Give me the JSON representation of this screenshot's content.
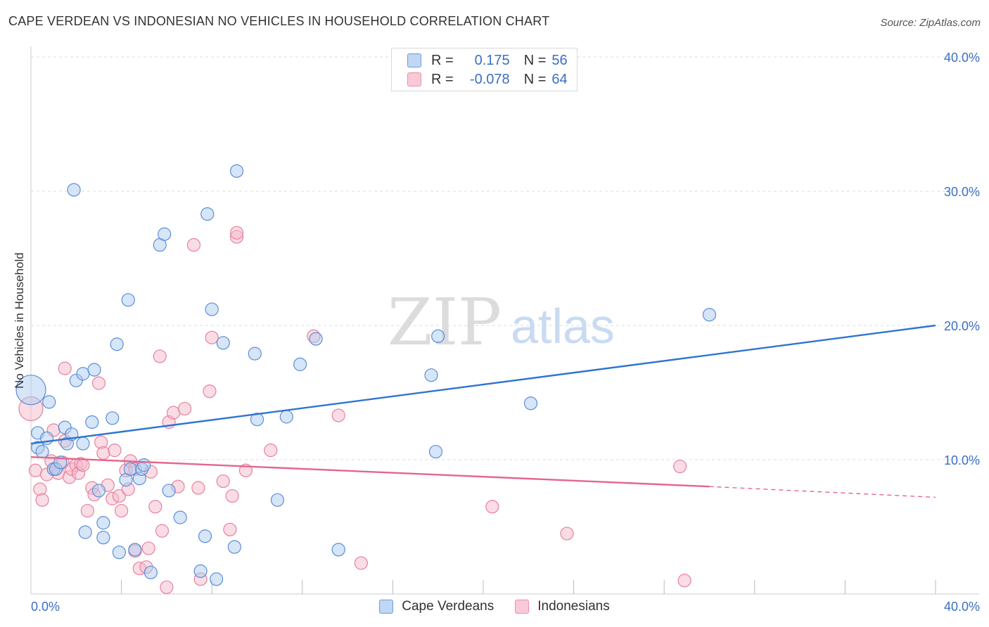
{
  "title": "CAPE VERDEAN VS INDONESIAN NO VEHICLES IN HOUSEHOLD CORRELATION CHART",
  "source": "Source: ZipAtlas.com",
  "watermark": {
    "zip": "ZIP",
    "atlas": "atlas"
  },
  "legend": {
    "cape": {
      "r_label": "R =",
      "r_value": "0.175",
      "n_label": "N =",
      "n_value": "56"
    },
    "indo": {
      "r_label": "R =",
      "r_value": "-0.078",
      "n_label": "N =",
      "n_value": "64"
    }
  },
  "colors": {
    "cape_fill": "#aecbef",
    "cape_stroke": "#5b8fd6",
    "cape_line": "#2f74cf",
    "indo_fill": "#f6b9cb",
    "indo_stroke": "#e6819f",
    "indo_line": "#e5658d",
    "axis_text": "#3a6fc4",
    "grid": "#dddddd"
  },
  "chart_data": {
    "type": "scatter",
    "title": "CAPE VERDEAN VS INDONESIAN NO VEHICLES IN HOUSEHOLD CORRELATION CHART",
    "xlabel": "",
    "ylabel": "No Vehicles in Household",
    "xlim": [
      0,
      40
    ],
    "ylim": [
      0,
      40
    ],
    "x_tick_labels": [
      "0.0%",
      "40.0%"
    ],
    "y_tick_labels": [
      "10.0%",
      "20.0%",
      "30.0%",
      "40.0%"
    ],
    "y_ticks": [
      10,
      20,
      30,
      40
    ],
    "grid": true,
    "legend_position": "top-center",
    "series": [
      {
        "name": "Cape Verdeans",
        "trend": {
          "x": [
            0,
            40
          ],
          "y": [
            11.2,
            20.0
          ]
        },
        "points": [
          [
            0.0,
            15.2,
            22
          ],
          [
            0.3,
            10.9,
            10
          ],
          [
            0.3,
            12.0,
            10
          ],
          [
            0.5,
            10.6,
            10
          ],
          [
            0.7,
            11.6,
            10
          ],
          [
            0.8,
            14.3,
            10
          ],
          [
            1.0,
            9.3,
            10
          ],
          [
            1.1,
            9.3,
            10
          ],
          [
            1.3,
            9.8,
            10
          ],
          [
            1.5,
            12.4,
            10
          ],
          [
            1.6,
            11.2,
            10
          ],
          [
            1.8,
            11.9,
            10
          ],
          [
            1.9,
            30.1,
            10
          ],
          [
            2.0,
            15.9,
            10
          ],
          [
            2.3,
            11.2,
            10
          ],
          [
            2.3,
            16.4,
            10
          ],
          [
            2.4,
            4.6,
            10
          ],
          [
            2.7,
            12.8,
            10
          ],
          [
            2.8,
            16.7,
            10
          ],
          [
            3.0,
            7.7,
            10
          ],
          [
            3.2,
            5.3,
            10
          ],
          [
            3.2,
            4.2,
            10
          ],
          [
            3.6,
            13.1,
            10
          ],
          [
            3.8,
            18.6,
            10
          ],
          [
            3.9,
            3.1,
            10
          ],
          [
            4.2,
            8.5,
            10
          ],
          [
            4.3,
            21.9,
            10
          ],
          [
            4.4,
            9.3,
            10
          ],
          [
            4.6,
            3.3,
            10
          ],
          [
            4.8,
            8.6,
            10
          ],
          [
            4.9,
            9.3,
            10
          ],
          [
            5.0,
            9.6,
            10
          ],
          [
            5.3,
            1.6,
            10
          ],
          [
            5.7,
            26.0,
            10
          ],
          [
            5.9,
            26.8,
            10
          ],
          [
            6.1,
            7.7,
            10
          ],
          [
            6.6,
            5.7,
            10
          ],
          [
            7.5,
            1.7,
            10
          ],
          [
            7.7,
            4.3,
            10
          ],
          [
            7.8,
            28.3,
            10
          ],
          [
            8.0,
            21.2,
            10
          ],
          [
            8.2,
            1.1,
            10
          ],
          [
            8.5,
            18.7,
            10
          ],
          [
            9.0,
            3.5,
            10
          ],
          [
            9.1,
            31.5,
            10
          ],
          [
            9.9,
            17.9,
            10
          ],
          [
            10.0,
            13.0,
            10
          ],
          [
            10.9,
            7.0,
            10
          ],
          [
            11.3,
            13.2,
            10
          ],
          [
            11.9,
            17.1,
            10
          ],
          [
            12.6,
            19.0,
            10
          ],
          [
            13.6,
            3.3,
            10
          ],
          [
            17.7,
            16.3,
            10
          ],
          [
            17.9,
            10.6,
            10
          ],
          [
            18.0,
            19.2,
            10
          ],
          [
            22.1,
            14.2,
            10
          ],
          [
            30.0,
            20.8,
            10
          ]
        ]
      },
      {
        "name": "Indonesians",
        "trend": {
          "x": [
            0,
            30
          ],
          "y": [
            10.2,
            8.0
          ],
          "dash_to": [
            40,
            7.2
          ]
        },
        "points": [
          [
            0.0,
            13.8,
            18
          ],
          [
            0.2,
            9.2,
            10
          ],
          [
            0.4,
            7.8,
            10
          ],
          [
            0.5,
            7.0,
            10
          ],
          [
            0.7,
            8.9,
            10
          ],
          [
            0.9,
            9.9,
            10
          ],
          [
            1.0,
            12.2,
            10
          ],
          [
            1.1,
            9.3,
            10
          ],
          [
            1.2,
            9.0,
            10
          ],
          [
            1.4,
            9.8,
            10
          ],
          [
            1.5,
            11.4,
            10
          ],
          [
            1.5,
            16.8,
            10
          ],
          [
            1.7,
            8.7,
            10
          ],
          [
            1.8,
            9.3,
            10
          ],
          [
            2.0,
            9.6,
            10
          ],
          [
            2.1,
            9.0,
            10
          ],
          [
            2.2,
            9.7,
            10
          ],
          [
            2.3,
            9.6,
            10
          ],
          [
            2.5,
            6.2,
            10
          ],
          [
            2.7,
            7.9,
            10
          ],
          [
            2.8,
            7.4,
            10
          ],
          [
            3.0,
            15.7,
            10
          ],
          [
            3.1,
            11.3,
            10
          ],
          [
            3.2,
            10.5,
            10
          ],
          [
            3.4,
            8.1,
            10
          ],
          [
            3.6,
            7.1,
            10
          ],
          [
            3.7,
            10.7,
            10
          ],
          [
            3.9,
            7.3,
            10
          ],
          [
            4.0,
            6.2,
            10
          ],
          [
            4.2,
            9.2,
            10
          ],
          [
            4.3,
            7.8,
            10
          ],
          [
            4.4,
            9.9,
            10
          ],
          [
            4.6,
            3.2,
            10
          ],
          [
            4.6,
            9.3,
            10
          ],
          [
            4.8,
            1.9,
            10
          ],
          [
            5.1,
            2.0,
            10
          ],
          [
            5.2,
            3.4,
            10
          ],
          [
            5.3,
            9.1,
            10
          ],
          [
            5.5,
            6.5,
            10
          ],
          [
            5.7,
            17.7,
            10
          ],
          [
            5.8,
            4.7,
            10
          ],
          [
            6.0,
            0.5,
            10
          ],
          [
            6.1,
            12.8,
            10
          ],
          [
            6.3,
            13.5,
            10
          ],
          [
            6.5,
            8.0,
            10
          ],
          [
            6.8,
            13.8,
            10
          ],
          [
            7.2,
            26.0,
            10
          ],
          [
            7.4,
            7.9,
            10
          ],
          [
            7.5,
            1.1,
            10
          ],
          [
            7.9,
            15.1,
            10
          ],
          [
            8.0,
            19.1,
            10
          ],
          [
            8.5,
            8.4,
            10
          ],
          [
            8.8,
            4.8,
            10
          ],
          [
            8.9,
            7.3,
            10
          ],
          [
            9.1,
            26.6,
            10
          ],
          [
            9.1,
            26.9,
            10
          ],
          [
            9.5,
            9.2,
            10
          ],
          [
            10.6,
            10.7,
            10
          ],
          [
            12.5,
            19.2,
            10
          ],
          [
            13.6,
            13.3,
            10
          ],
          [
            14.6,
            2.3,
            10
          ],
          [
            20.4,
            6.5,
            10
          ],
          [
            23.7,
            4.5,
            10
          ],
          [
            28.7,
            9.5,
            10
          ],
          [
            28.9,
            1.0,
            10
          ]
        ]
      }
    ]
  }
}
